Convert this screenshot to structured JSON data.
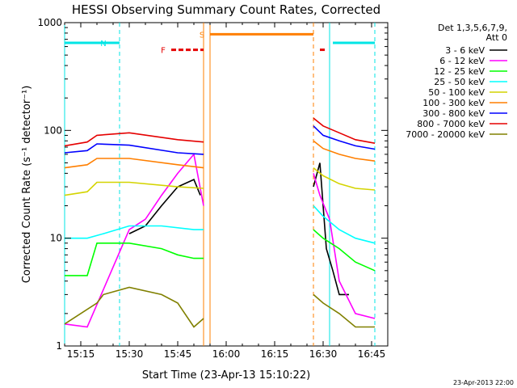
{
  "chart_data": {
    "type": "line",
    "title": "HESSI Observing Summary Count Rates, Corrected",
    "ylabel": "Corrected Count Rate (s⁻¹ detector⁻¹)",
    "xlabel": "Start Time (23-Apr-13 15:10:22)",
    "yscale": "log",
    "ylim": [
      1,
      1000
    ],
    "xlim_minutes_of_day": [
      910,
      1010
    ],
    "x_ticks": [
      "15:15",
      "15:30",
      "15:45",
      "16:00",
      "16:15",
      "16:30",
      "16:45"
    ],
    "y_ticks": [
      "1",
      "10",
      "100",
      "1000"
    ],
    "legend_header": [
      "Det 1,3,5,6,7,9,",
      "Att 0"
    ],
    "legend_position": "right",
    "date_stamp": "23-Apr-2013 22:00",
    "flags": [
      {
        "label": "N",
        "color": "#00e5e5",
        "y": 650,
        "segments": [
          [
            "15:10",
            "15:27"
          ],
          [
            "16:33",
            "16:46"
          ]
        ]
      },
      {
        "label": "F",
        "color": "#e50000",
        "y": 560,
        "segments": [
          [
            "15:43",
            "15:53"
          ],
          [
            "16:29",
            "16:31"
          ]
        ]
      },
      {
        "label": "S",
        "color": "#ff7f00",
        "y": 780,
        "segments": [
          [
            "15:55",
            "16:27"
          ]
        ]
      }
    ],
    "vertical_markers": [
      {
        "time": "15:10",
        "color": "#00e5e5",
        "style": "solid"
      },
      {
        "time": "15:27",
        "color": "#00e5e5",
        "style": "dashed"
      },
      {
        "time": "15:53",
        "color": "#ff7f00",
        "style": "solid"
      },
      {
        "time": "15:55",
        "color": "#ff7f00",
        "style": "solid"
      },
      {
        "time": "16:27",
        "color": "#ff7f00",
        "style": "dashed"
      },
      {
        "time": "16:32",
        "color": "#00e5e5",
        "style": "solid"
      },
      {
        "time": "16:46",
        "color": "#00e5e5",
        "style": "dashed"
      }
    ],
    "series": [
      {
        "name": "3 - 6 keV",
        "color": "#000000",
        "segments": [
          {
            "x": [
              "15:30",
              "15:35",
              "15:40",
              "15:45",
              "15:50",
              "15:52"
            ],
            "y": [
              11,
              13,
              20,
              30,
              35,
              25
            ]
          },
          {
            "x": [
              "16:27",
              "16:29",
              "16:31",
              "16:33",
              "16:35",
              "16:38"
            ],
            "y": [
              30,
              50,
              8,
              5,
              3,
              3
            ]
          }
        ]
      },
      {
        "name": "6 - 12 keV",
        "color": "#ff00ff",
        "segments": [
          {
            "x": [
              "15:10",
              "15:17",
              "15:30",
              "15:35",
              "15:40",
              "15:45",
              "15:50",
              "15:53"
            ],
            "y": [
              1.6,
              1.5,
              12,
              15,
              25,
              40,
              60,
              20
            ]
          },
          {
            "x": [
              "16:27",
              "16:29",
              "16:32",
              "16:35",
              "16:40",
              "16:46"
            ],
            "y": [
              40,
              25,
              15,
              4,
              2,
              1.8
            ]
          }
        ]
      },
      {
        "name": "12 - 25 keV",
        "color": "#00ff00",
        "segments": [
          {
            "x": [
              "15:10",
              "15:17",
              "15:20",
              "15:30",
              "15:40",
              "15:45",
              "15:50",
              "15:53"
            ],
            "y": [
              4.5,
              4.5,
              9,
              9,
              8,
              7,
              6.5,
              6.5
            ]
          },
          {
            "x": [
              "16:27",
              "16:30",
              "16:35",
              "16:40",
              "16:46"
            ],
            "y": [
              12,
              10,
              8,
              6,
              5
            ]
          }
        ]
      },
      {
        "name": "25 - 50 keV",
        "color": "#00ffff",
        "segments": [
          {
            "x": [
              "15:10",
              "15:17",
              "15:22",
              "15:30",
              "15:40",
              "15:50",
              "15:53"
            ],
            "y": [
              10,
              10,
              11,
              13,
              13,
              12,
              12
            ]
          },
          {
            "x": [
              "16:27",
              "16:30",
              "16:35",
              "16:40",
              "16:46"
            ],
            "y": [
              20,
              16,
              12,
              10,
              9
            ]
          }
        ]
      },
      {
        "name": "50 - 100 keV",
        "color": "#d4d400",
        "segments": [
          {
            "x": [
              "15:10",
              "15:17",
              "15:20",
              "15:30",
              "15:45",
              "15:53"
            ],
            "y": [
              25,
              27,
              33,
              33,
              30,
              29
            ]
          },
          {
            "x": [
              "16:27",
              "16:30",
              "16:35",
              "16:40",
              "16:46"
            ],
            "y": [
              45,
              38,
              32,
              29,
              28
            ]
          }
        ]
      },
      {
        "name": "100 - 300 keV",
        "color": "#ff7f00",
        "segments": [
          {
            "x": [
              "15:10",
              "15:17",
              "15:20",
              "15:30",
              "15:45",
              "15:53"
            ],
            "y": [
              45,
              48,
              55,
              55,
              48,
              45
            ]
          },
          {
            "x": [
              "16:27",
              "16:30",
              "16:35",
              "16:40",
              "16:46"
            ],
            "y": [
              80,
              68,
              60,
              55,
              52
            ]
          }
        ]
      },
      {
        "name": "300 - 800 keV",
        "color": "#0000ff",
        "segments": [
          {
            "x": [
              "15:10",
              "15:17",
              "15:20",
              "15:30",
              "15:45",
              "15:53"
            ],
            "y": [
              62,
              65,
              75,
              73,
              62,
              60
            ]
          },
          {
            "x": [
              "16:27",
              "16:30",
              "16:35",
              "16:40",
              "16:46"
            ],
            "y": [
              110,
              90,
              80,
              72,
              67
            ]
          }
        ]
      },
      {
        "name": "800 - 7000 keV",
        "color": "#e50000",
        "segments": [
          {
            "x": [
              "15:10",
              "15:17",
              "15:20",
              "15:30",
              "15:45",
              "15:53"
            ],
            "y": [
              72,
              78,
              90,
              95,
              82,
              78
            ]
          },
          {
            "x": [
              "16:27",
              "16:30",
              "16:35",
              "16:40",
              "16:46"
            ],
            "y": [
              130,
              110,
              95,
              82,
              76
            ]
          }
        ]
      },
      {
        "name": "7000 - 20000 keV",
        "color": "#808000",
        "segments": [
          {
            "x": [
              "15:10",
              "15:20",
              "15:22",
              "15:30",
              "15:40",
              "15:45",
              "15:50",
              "15:53"
            ],
            "y": [
              1.6,
              2.5,
              3,
              3.5,
              3,
              2.5,
              1.5,
              1.8
            ]
          },
          {
            "x": [
              "16:27",
              "16:30",
              "16:35",
              "16:40",
              "16:46"
            ],
            "y": [
              3,
              2.5,
              2,
              1.5,
              1.5
            ]
          }
        ]
      }
    ]
  }
}
